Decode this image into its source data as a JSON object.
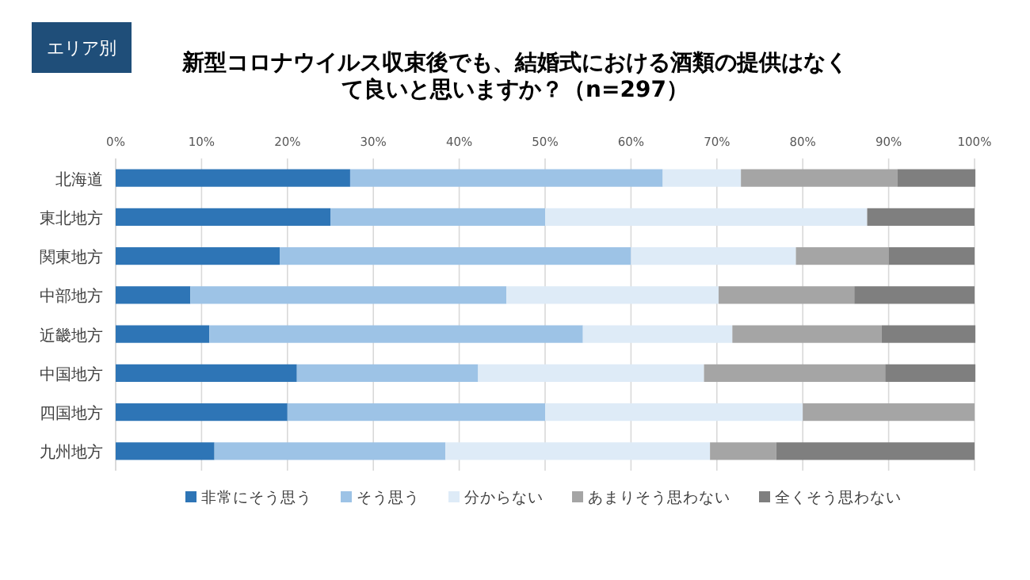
{
  "chart_data": {
    "type": "bar",
    "orientation": "horizontal",
    "stacked": true,
    "title": "新型コロナウイルス収束後でも、結婚式における酒類の提供はなくて良いと思いますか？（n=297）",
    "annotations": [
      "エリア別"
    ],
    "categories": [
      "北海道",
      "東北地方",
      "関東地方",
      "中部地方",
      "近畿地方",
      "中国地方",
      "四国地方",
      "九州地方"
    ],
    "series": [
      {
        "name": "非常にそう思う",
        "color": "#2e75b6",
        "values": [
          27.3,
          25,
          19.1,
          8.7,
          10.9,
          21.1,
          20,
          11.5
        ]
      },
      {
        "name": "そう思う",
        "color": "#9dc3e6",
        "values": [
          36.4,
          25,
          40.9,
          36.8,
          43.5,
          21.1,
          30,
          26.9
        ]
      },
      {
        "name": "分からない",
        "color": "#deebf7",
        "values": [
          9.1,
          37.5,
          19.2,
          24.7,
          17.4,
          26.3,
          30,
          30.8
        ]
      },
      {
        "name": "あまりそう思わない",
        "color": "#a5a5a5",
        "values": [
          18.2,
          0,
          10.8,
          15.8,
          17.4,
          21.1,
          20,
          7.7
        ]
      },
      {
        "name": "全くそう思わない",
        "color": "#7f7f7f",
        "values": [
          9.1,
          12.5,
          10,
          14,
          10.9,
          10.5,
          0,
          23.1
        ]
      }
    ],
    "xlim": [
      0,
      100
    ],
    "xticks": [
      {
        "value": 0,
        "label": "0%"
      },
      {
        "value": 10,
        "label": "10%"
      },
      {
        "value": 20,
        "label": "20%"
      },
      {
        "value": 30,
        "label": "30%"
      },
      {
        "value": 40,
        "label": "40%"
      },
      {
        "value": 50,
        "label": "50%"
      },
      {
        "value": 60,
        "label": "60%"
      },
      {
        "value": 70,
        "label": "70%"
      },
      {
        "value": 80,
        "label": "80%"
      },
      {
        "value": 90,
        "label": "90%"
      },
      {
        "value": 100,
        "label": "100%"
      }
    ],
    "grid": "x",
    "legend": "bottom"
  }
}
